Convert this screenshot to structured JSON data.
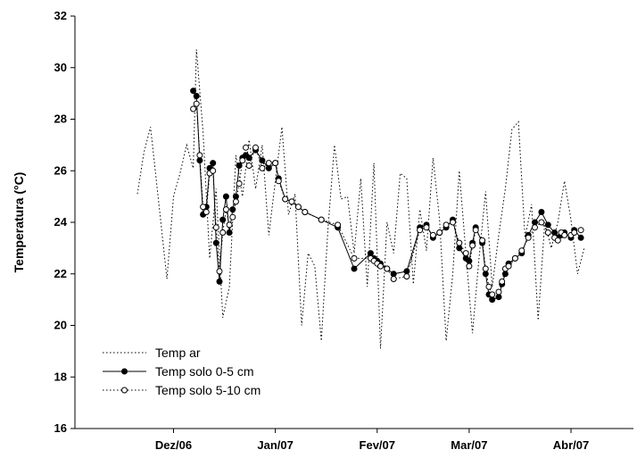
{
  "chart_data": {
    "type": "line",
    "title": "",
    "ylabel": "Temperatura (°C)",
    "xlabel": "",
    "ylim": [
      16,
      32
    ],
    "xlim": [
      "2006-11-01",
      "2007-04-20"
    ],
    "y_ticks": [
      16,
      18,
      20,
      22,
      24,
      26,
      28,
      30,
      32
    ],
    "x_ticks": [
      {
        "date": "2006-12-01",
        "label": "Dez/06"
      },
      {
        "date": "2007-01-01",
        "label": "Jan/07"
      },
      {
        "date": "2007-02-01",
        "label": "Fev/07"
      },
      {
        "date": "2007-03-01",
        "label": "Mar/07"
      },
      {
        "date": "2007-04-01",
        "label": "Abr/07"
      }
    ],
    "legend_position": "bottom-left",
    "grid": false,
    "series": [
      {
        "name": "Temp ar",
        "style": "dotted",
        "marker": "none",
        "color": "#000000",
        "x": [
          "2006-11-20",
          "2006-11-22",
          "2006-11-24",
          "2006-11-27",
          "2006-11-29",
          "2006-12-01",
          "2006-12-03",
          "2006-12-05",
          "2006-12-07",
          "2006-12-08",
          "2006-12-10",
          "2006-12-12",
          "2006-12-14",
          "2006-12-16",
          "2006-12-18",
          "2006-12-20",
          "2006-12-22",
          "2006-12-24",
          "2006-12-26",
          "2006-12-28",
          "2006-12-30",
          "2007-01-01",
          "2007-01-03",
          "2007-01-05",
          "2007-01-07",
          "2007-01-09",
          "2007-01-11",
          "2007-01-13",
          "2007-01-15",
          "2007-01-17",
          "2007-01-19",
          "2007-01-21",
          "2007-01-23",
          "2007-01-25",
          "2007-01-27",
          "2007-01-29",
          "2007-01-31",
          "2007-02-02",
          "2007-02-04",
          "2007-02-06",
          "2007-02-08",
          "2007-02-10",
          "2007-02-12",
          "2007-02-14",
          "2007-02-16",
          "2007-02-18",
          "2007-02-20",
          "2007-02-22",
          "2007-02-24",
          "2007-02-26",
          "2007-02-28",
          "2007-03-02",
          "2007-03-04",
          "2007-03-06",
          "2007-03-08",
          "2007-03-10",
          "2007-03-12",
          "2007-03-14",
          "2007-03-16",
          "2007-03-18",
          "2007-03-20",
          "2007-03-22",
          "2007-03-24",
          "2007-03-26",
          "2007-03-28",
          "2007-03-30",
          "2007-04-01",
          "2007-04-03",
          "2007-04-05"
        ],
        "y": [
          25.1,
          26.7,
          27.7,
          24.2,
          21.8,
          25.0,
          25.9,
          27.0,
          26.1,
          30.7,
          27.5,
          22.6,
          25.3,
          20.3,
          21.5,
          26.6,
          25.0,
          27.2,
          25.3,
          27.0,
          23.5,
          25.6,
          27.7,
          24.3,
          25.1,
          20.0,
          22.8,
          22.3,
          19.4,
          23.7,
          27.0,
          24.9,
          25.0,
          22.8,
          25.7,
          21.5,
          26.3,
          19.1,
          24.0,
          22.8,
          25.9,
          25.7,
          21.6,
          24.5,
          22.9,
          26.5,
          24.1,
          19.4,
          22.0,
          26.0,
          22.8,
          19.7,
          22.6,
          25.2,
          21.5,
          23.5,
          25.3,
          27.6,
          27.9,
          23.4,
          24.7,
          20.2,
          24.0,
          23.0,
          24.0,
          25.6,
          24.1,
          22.0,
          23.0
        ]
      },
      {
        "name": "Temp solo 0-5 cm",
        "style": "solid",
        "marker": "filled-circle",
        "color": "#000000",
        "x": [
          "2006-12-07",
          "2006-12-08",
          "2006-12-09",
          "2006-12-10",
          "2006-12-11",
          "2006-12-12",
          "2006-12-13",
          "2006-12-14",
          "2006-12-15",
          "2006-12-16",
          "2006-12-17",
          "2006-12-18",
          "2006-12-19",
          "2006-12-20",
          "2006-12-21",
          "2006-12-22",
          "2006-12-23",
          "2006-12-24",
          "2006-12-26",
          "2006-12-28",
          "2006-12-30",
          "2007-01-01",
          "2007-01-02",
          "2007-01-04",
          "2007-01-06",
          "2007-01-08",
          "2007-01-10",
          "2007-01-15",
          "2007-01-20",
          "2007-01-25",
          "2007-01-30",
          "2007-01-31",
          "2007-02-01",
          "2007-02-02",
          "2007-02-04",
          "2007-02-06",
          "2007-02-10",
          "2007-02-14",
          "2007-02-16",
          "2007-02-18",
          "2007-02-20",
          "2007-02-22",
          "2007-02-24",
          "2007-02-26",
          "2007-02-28",
          "2007-03-01",
          "2007-03-02",
          "2007-03-03",
          "2007-03-05",
          "2007-03-06",
          "2007-03-07",
          "2007-03-08",
          "2007-03-10",
          "2007-03-11",
          "2007-03-12",
          "2007-03-13",
          "2007-03-15",
          "2007-03-17",
          "2007-03-19",
          "2007-03-21",
          "2007-03-23",
          "2007-03-25",
          "2007-03-27",
          "2007-03-28",
          "2007-03-29",
          "2007-03-30",
          "2007-04-01",
          "2007-04-02",
          "2007-04-04"
        ],
        "y": [
          29.1,
          28.9,
          26.4,
          24.3,
          24.6,
          26.1,
          26.3,
          23.2,
          21.7,
          24.1,
          25.0,
          23.6,
          24.5,
          25.0,
          26.2,
          26.5,
          26.6,
          26.5,
          26.8,
          26.4,
          26.1,
          26.3,
          25.7,
          24.9,
          24.8,
          24.6,
          24.4,
          24.1,
          23.8,
          22.2,
          22.8,
          22.6,
          22.5,
          22.4,
          22.2,
          22.0,
          22.1,
          23.8,
          23.9,
          23.4,
          23.6,
          23.8,
          24.1,
          23.0,
          22.6,
          22.5,
          23.2,
          23.8,
          23.2,
          22.0,
          21.2,
          21.0,
          21.1,
          21.6,
          22.0,
          22.4,
          22.6,
          22.8,
          23.5,
          24.0,
          24.4,
          23.9,
          23.6,
          23.4,
          23.5,
          23.6,
          23.4,
          23.7,
          23.4
        ]
      },
      {
        "name": "Temp solo 5-10 cm",
        "style": "dotted",
        "marker": "open-circle",
        "color": "#000000",
        "x": [
          "2006-12-07",
          "2006-12-08",
          "2006-12-09",
          "2006-12-10",
          "2006-12-11",
          "2006-12-12",
          "2006-12-13",
          "2006-12-14",
          "2006-12-15",
          "2006-12-16",
          "2006-12-17",
          "2006-12-18",
          "2006-12-19",
          "2006-12-20",
          "2006-12-21",
          "2006-12-22",
          "2006-12-23",
          "2006-12-24",
          "2006-12-26",
          "2006-12-28",
          "2006-12-30",
          "2007-01-01",
          "2007-01-02",
          "2007-01-04",
          "2007-01-06",
          "2007-01-08",
          "2007-01-10",
          "2007-01-15",
          "2007-01-20",
          "2007-01-25",
          "2007-01-30",
          "2007-01-31",
          "2007-02-01",
          "2007-02-02",
          "2007-02-04",
          "2007-02-06",
          "2007-02-10",
          "2007-02-14",
          "2007-02-16",
          "2007-02-18",
          "2007-02-20",
          "2007-02-22",
          "2007-02-24",
          "2007-02-26",
          "2007-02-28",
          "2007-03-01",
          "2007-03-02",
          "2007-03-03",
          "2007-03-05",
          "2007-03-06",
          "2007-03-07",
          "2007-03-08",
          "2007-03-10",
          "2007-03-11",
          "2007-03-12",
          "2007-03-13",
          "2007-03-15",
          "2007-03-17",
          "2007-03-19",
          "2007-03-21",
          "2007-03-23",
          "2007-03-25",
          "2007-03-27",
          "2007-03-28",
          "2007-03-29",
          "2007-03-30",
          "2007-04-01",
          "2007-04-02",
          "2007-04-04"
        ],
        "y": [
          28.4,
          28.6,
          26.6,
          24.6,
          24.4,
          25.9,
          26.0,
          23.8,
          22.1,
          23.6,
          24.5,
          23.9,
          24.2,
          24.8,
          25.5,
          26.4,
          26.9,
          26.2,
          26.9,
          26.1,
          26.3,
          26.3,
          25.6,
          24.9,
          24.8,
          24.6,
          24.4,
          24.1,
          23.9,
          22.6,
          22.6,
          22.5,
          22.4,
          22.3,
          22.2,
          21.8,
          21.9,
          23.7,
          23.8,
          23.5,
          23.6,
          23.9,
          24.0,
          23.2,
          22.8,
          22.3,
          23.1,
          23.7,
          23.3,
          22.2,
          21.5,
          21.2,
          21.3,
          21.7,
          22.2,
          22.3,
          22.6,
          22.9,
          23.4,
          23.8,
          24.0,
          23.6,
          23.4,
          23.3,
          23.6,
          23.5,
          23.5,
          23.6,
          23.7
        ]
      }
    ]
  }
}
